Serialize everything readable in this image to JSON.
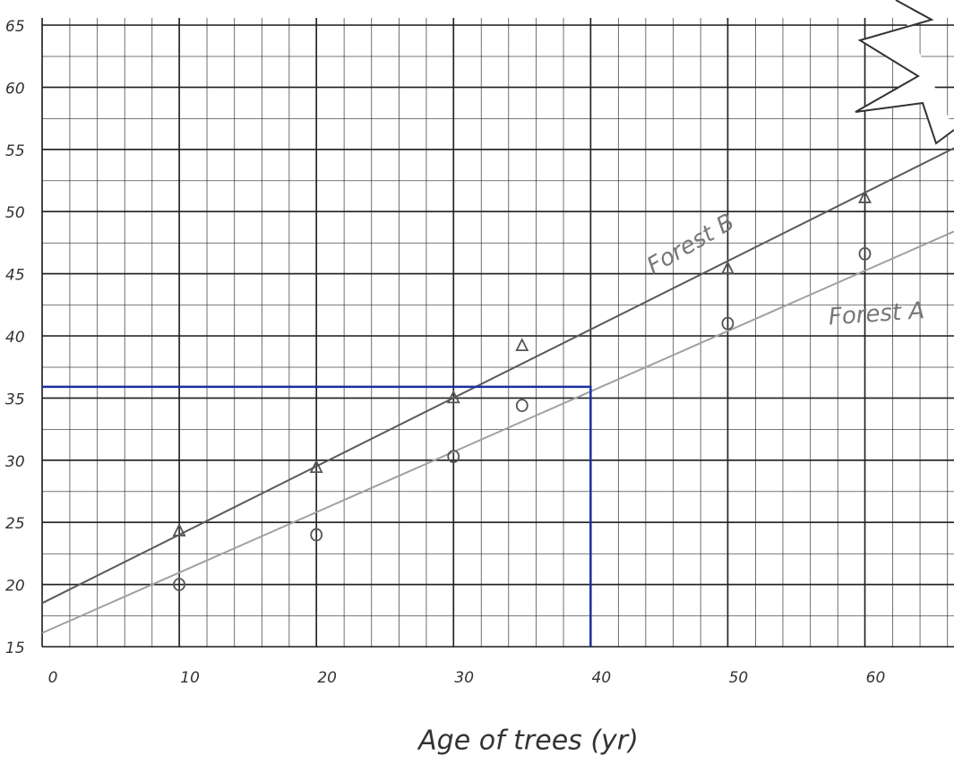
{
  "chart_data": {
    "type": "scatter",
    "x_label": "Age of trees (yr)",
    "xlim": [
      0,
      66.5
    ],
    "ylim": [
      15,
      65
    ],
    "xticks": [
      0,
      10,
      20,
      30,
      40,
      50,
      60
    ],
    "yticks": [
      15,
      20,
      25,
      30,
      35,
      40,
      45,
      50,
      55,
      60,
      65
    ],
    "grid": true,
    "series": [
      {
        "name": "Forest A",
        "color": "#555555",
        "marker": "circle",
        "x": [
          10,
          20,
          30,
          35,
          50,
          60
        ],
        "values": [
          20,
          24,
          30.3,
          34.4,
          41,
          46.6
        ],
        "fit": {
          "color": "#a0a0a0",
          "x": [
            0,
            66.5
          ],
          "values": [
            16.1,
            48.4
          ]
        }
      },
      {
        "name": "Forest B",
        "color": "#555555",
        "marker": "triangle",
        "x": [
          10,
          20,
          30,
          35,
          50,
          60
        ],
        "values": [
          24.3,
          29.4,
          35,
          39.2,
          45.4,
          51.1
        ],
        "fit": {
          "color": "#5a5a5a",
          "x": [
            0,
            66.5
          ],
          "values": [
            18.5,
            55.1
          ]
        }
      }
    ],
    "reading_line": {
      "color": "#1a2fa0",
      "x": [
        0,
        40,
        40
      ],
      "values": [
        35.9,
        35.9,
        15
      ]
    }
  }
}
